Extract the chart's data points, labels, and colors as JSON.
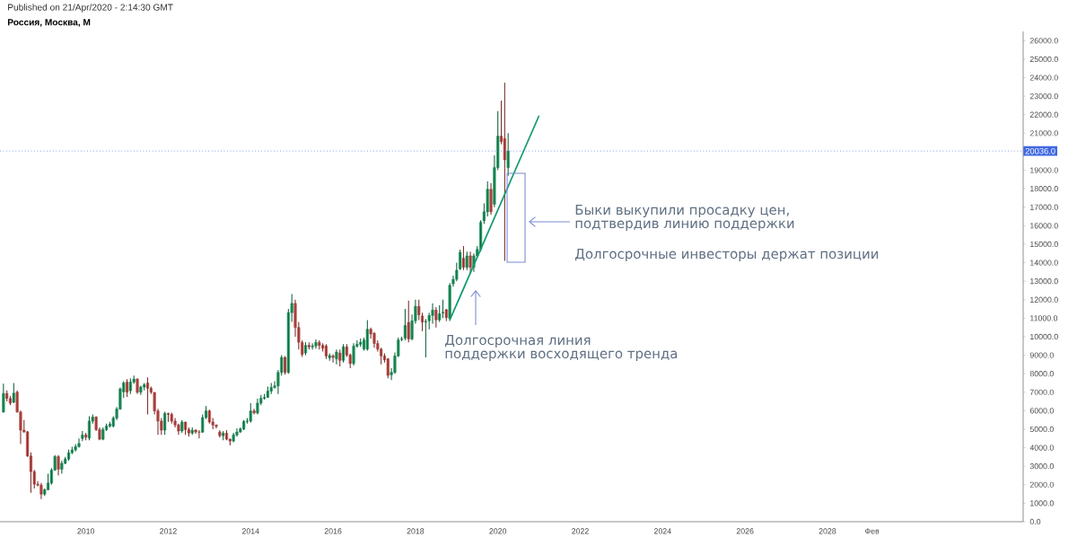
{
  "chart_data": {
    "type": "candlestick",
    "title": "Россия, Москва, M",
    "annotations": [
      "Published on 21/Apr/2020 - 2:14:30 GMT",
      "Быки выкупили просадку цен,",
      "подтвердив линию поддержки",
      "Долгосрочные инвесторы держат позиции",
      "Долгосрочная линия",
      "поддержки восходящего тренда"
    ],
    "x": [
      "2008-01",
      "2008-02",
      "2008-03",
      "2008-04",
      "2008-05",
      "2008-06",
      "2008-07",
      "2008-08",
      "2008-09",
      "2008-10",
      "2008-11",
      "2008-12",
      "2009-01",
      "2009-02",
      "2009-03",
      "2009-04",
      "2009-05",
      "2009-06",
      "2009-07",
      "2009-08",
      "2009-09",
      "2009-10",
      "2009-11",
      "2009-12",
      "2010-01",
      "2010-02",
      "2010-03",
      "2010-04",
      "2010-05",
      "2010-06",
      "2010-07",
      "2010-08",
      "2010-09",
      "2010-10",
      "2010-11",
      "2010-12",
      "2011-01",
      "2011-02",
      "2011-03",
      "2011-04",
      "2011-05",
      "2011-06",
      "2011-07",
      "2011-08",
      "2011-09",
      "2011-10",
      "2011-11",
      "2011-12",
      "2012-01",
      "2012-02",
      "2012-03",
      "2012-04",
      "2012-05",
      "2012-06",
      "2012-07",
      "2012-08",
      "2012-09",
      "2012-10",
      "2012-11",
      "2012-12",
      "2013-01",
      "2013-02",
      "2013-03",
      "2013-04",
      "2013-05",
      "2013-06",
      "2013-07",
      "2013-08",
      "2013-09",
      "2013-10",
      "2013-11",
      "2013-12",
      "2014-01",
      "2014-02",
      "2014-03",
      "2014-04",
      "2014-05",
      "2014-06",
      "2014-07",
      "2014-08",
      "2014-09",
      "2014-10",
      "2014-11",
      "2014-12",
      "2015-01",
      "2015-02",
      "2015-03",
      "2015-04",
      "2015-05",
      "2015-06",
      "2015-07",
      "2015-08",
      "2015-09",
      "2015-10",
      "2015-11",
      "2015-12",
      "2016-01",
      "2016-02",
      "2016-03",
      "2016-04",
      "2016-05",
      "2016-06",
      "2016-07",
      "2016-08",
      "2016-09",
      "2016-10",
      "2016-11",
      "2016-12",
      "2017-01",
      "2017-02",
      "2017-03",
      "2017-04",
      "2017-05",
      "2017-06",
      "2017-07",
      "2017-08",
      "2017-09",
      "2017-10",
      "2017-11",
      "2017-12",
      "2018-01",
      "2018-02",
      "2018-03",
      "2018-04",
      "2018-05",
      "2018-06",
      "2018-07",
      "2018-08",
      "2018-09",
      "2018-10",
      "2018-11",
      "2018-12",
      "2019-01",
      "2019-02",
      "2019-03",
      "2019-04",
      "2019-05",
      "2019-06",
      "2019-07",
      "2019-08",
      "2019-09",
      "2019-10",
      "2019-11",
      "2019-12",
      "2020-01",
      "2020-02",
      "2020-03",
      "2020-04"
    ],
    "ohlc": [
      [
        5930,
        7460,
        5900,
        6930
      ],
      [
        6930,
        7100,
        6500,
        6660
      ],
      [
        6660,
        6800,
        6300,
        6410
      ],
      [
        6460,
        7500,
        6400,
        6950
      ],
      [
        7000,
        7100,
        5900,
        5930
      ],
      [
        5930,
        6000,
        4200,
        4950
      ],
      [
        4950,
        5500,
        4800,
        4860
      ],
      [
        4860,
        4900,
        3500,
        3550
      ],
      [
        3550,
        3750,
        1570,
        2710
      ],
      [
        2710,
        2800,
        1800,
        2030
      ],
      [
        2030,
        2200,
        1900,
        1980
      ],
      [
        1980,
        2100,
        1230,
        1490
      ],
      [
        1490,
        1800,
        1400,
        1730
      ],
      [
        1730,
        2600,
        1700,
        2090
      ],
      [
        2090,
        2900,
        2000,
        2790
      ],
      [
        2790,
        3600,
        2750,
        3520
      ],
      [
        3520,
        3600,
        2500,
        2840
      ],
      [
        2840,
        3300,
        2600,
        3160
      ],
      [
        3160,
        3500,
        3100,
        3390
      ],
      [
        3390,
        3900,
        3300,
        3730
      ],
      [
        3730,
        4050,
        3650,
        3880
      ],
      [
        3880,
        4200,
        3800,
        4060
      ],
      [
        4060,
        4500,
        4000,
        4230
      ],
      [
        4500,
        4900,
        4350,
        4690
      ],
      [
        4690,
        4800,
        4400,
        4570
      ],
      [
        4520,
        5700,
        4400,
        5440
      ],
      [
        5440,
        5800,
        5300,
        5660
      ],
      [
        5660,
        5700,
        4900,
        4980
      ],
      [
        4980,
        5100,
        4400,
        4460
      ],
      [
        4460,
        5100,
        4400,
        4980
      ],
      [
        4980,
        5300,
        4900,
        5170
      ],
      [
        5170,
        5400,
        5100,
        5270
      ],
      [
        5170,
        5700,
        5100,
        5600
      ],
      [
        5600,
        6200,
        5500,
        6090
      ],
      [
        6090,
        7250,
        6050,
        7180
      ],
      [
        7020,
        7600,
        6700,
        7500
      ],
      [
        7550,
        7700,
        6750,
        7000
      ],
      [
        7080,
        7750,
        6900,
        7550
      ],
      [
        7550,
        7900,
        7450,
        7710
      ],
      [
        7710,
        7750,
        6900,
        7000
      ],
      [
        7000,
        7350,
        6850,
        7280
      ],
      [
        7280,
        7500,
        7100,
        7400
      ],
      [
        7500,
        7800,
        5800,
        7210
      ],
      [
        7210,
        7300,
        6900,
        7000
      ],
      [
        6990,
        7000,
        5800,
        5990
      ],
      [
        5990,
        6100,
        4700,
        5440
      ],
      [
        5440,
        5600,
        4700,
        4950
      ],
      [
        4950,
        5950,
        4700,
        5850
      ],
      [
        5850,
        5900,
        5400,
        5800
      ],
      [
        5800,
        5900,
        5300,
        5440
      ],
      [
        5440,
        5600,
        5100,
        5230
      ],
      [
        5230,
        5300,
        4700,
        4900
      ],
      [
        4900,
        5500,
        4800,
        5390
      ],
      [
        5390,
        5400,
        4700,
        4980
      ],
      [
        4980,
        5100,
        4600,
        4790
      ],
      [
        4790,
        5100,
        4700,
        4950
      ],
      [
        4950,
        5000,
        4750,
        4850
      ],
      [
        4850,
        4950,
        4500,
        4840
      ],
      [
        4840,
        5800,
        4800,
        5630
      ],
      [
        5630,
        6250,
        5550,
        5990
      ],
      [
        5990,
        6050,
        5300,
        5390
      ],
      [
        5390,
        5600,
        5000,
        5230
      ],
      [
        5230,
        5250,
        5050,
        5150
      ],
      [
        4850,
        4950,
        4550,
        4650
      ],
      [
        4650,
        4900,
        4400,
        4790
      ],
      [
        4790,
        4950,
        4400,
        4460
      ],
      [
        4460,
        4500,
        4130,
        4360
      ],
      [
        4360,
        4800,
        4300,
        4690
      ],
      [
        4690,
        5050,
        4600,
        4850
      ],
      [
        4850,
        5100,
        4800,
        5010
      ],
      [
        5010,
        5500,
        4950,
        5420
      ],
      [
        5420,
        5600,
        5300,
        5440
      ],
      [
        5440,
        6400,
        5350,
        5990
      ],
      [
        5990,
        6100,
        5800,
        5880
      ],
      [
        5880,
        6650,
        5800,
        6410
      ],
      [
        6410,
        6850,
        6300,
        6670
      ],
      [
        6670,
        6900,
        6600,
        6720
      ],
      [
        6720,
        7300,
        6700,
        7060
      ],
      [
        7060,
        7500,
        6900,
        7260
      ],
      [
        7260,
        7600,
        7200,
        7340
      ],
      [
        7340,
        8200,
        6900,
        8070
      ],
      [
        8070,
        9000,
        7900,
        8880
      ],
      [
        8880,
        8950,
        7950,
        8070
      ],
      [
        8070,
        11500,
        8000,
        11300
      ],
      [
        11300,
        12300,
        10800,
        11800
      ],
      [
        11800,
        12000,
        10000,
        10500
      ],
      [
        10500,
        10800,
        9300,
        9700
      ],
      [
        9690,
        9800,
        8900,
        9040
      ],
      [
        9120,
        9700,
        9000,
        9530
      ],
      [
        9530,
        9700,
        9300,
        9450
      ],
      [
        9450,
        9650,
        9300,
        9500
      ],
      [
        9500,
        9850,
        9350,
        9690
      ],
      [
        9690,
        9800,
        9300,
        9530
      ],
      [
        9530,
        9650,
        9200,
        9370
      ],
      [
        9500,
        9600,
        8800,
        8960
      ],
      [
        8860,
        9100,
        8700,
        8980
      ],
      [
        8960,
        9050,
        8600,
        8880
      ],
      [
        8800,
        9300,
        8500,
        9170
      ],
      [
        9120,
        9300,
        8400,
        8720
      ],
      [
        8720,
        9600,
        8600,
        9450
      ],
      [
        9450,
        9600,
        8900,
        9010
      ],
      [
        9010,
        9100,
        8300,
        8550
      ],
      [
        8550,
        9650,
        8450,
        9490
      ],
      [
        9490,
        9800,
        9400,
        9590
      ],
      [
        9590,
        9900,
        9450,
        9700
      ],
      [
        9330,
        9950,
        9250,
        9820
      ],
      [
        9330,
        10900,
        9250,
        10400
      ],
      [
        10400,
        10500,
        9900,
        10150
      ],
      [
        10180,
        10250,
        9400,
        9630
      ],
      [
        9630,
        9800,
        9200,
        9330
      ],
      [
        9330,
        9400,
        8500,
        8960
      ],
      [
        8960,
        9100,
        8600,
        8750
      ],
      [
        8800,
        8850,
        7750,
        7910
      ],
      [
        7940,
        8300,
        7650,
        8070
      ],
      [
        8070,
        9150,
        8000,
        8960
      ],
      [
        8960,
        9950,
        8900,
        9820
      ],
      [
        9850,
        10000,
        9750,
        9880
      ],
      [
        9930,
        11500,
        9800,
        10610
      ],
      [
        10770,
        11950,
        9700,
        9880
      ],
      [
        9880,
        11200,
        9800,
        10860
      ],
      [
        10860,
        12000,
        10700,
        11640
      ],
      [
        11640,
        12000,
        10900,
        11180
      ],
      [
        11120,
        11300,
        10300,
        10790
      ],
      [
        10800,
        10950,
        8880,
        10830
      ],
      [
        10860,
        11300,
        10400,
        11150
      ],
      [
        11150,
        11800,
        10700,
        11440
      ],
      [
        11440,
        11600,
        10500,
        10910
      ],
      [
        10910,
        11700,
        10800,
        11240
      ],
      [
        11280,
        12000,
        11000,
        11320
      ],
      [
        11460,
        11500,
        10850,
        11030
      ],
      [
        10990,
        12900,
        10850,
        12775
      ],
      [
        12860,
        13300,
        12700,
        13100
      ],
      [
        13100,
        14000,
        13000,
        13590
      ],
      [
        13670,
        14700,
        13600,
        14560
      ],
      [
        14240,
        14900,
        13600,
        13750
      ],
      [
        13750,
        14600,
        13600,
        14370
      ],
      [
        14370,
        14600,
        13400,
        13750
      ],
      [
        13750,
        14500,
        13500,
        14370
      ],
      [
        14370,
        14900,
        14300,
        14720
      ],
      [
        14720,
        16300,
        14600,
        16180
      ],
      [
        16270,
        17200,
        16100,
        16750
      ],
      [
        16750,
        18400,
        16500,
        17970
      ],
      [
        17970,
        18300,
        16600,
        16750
      ],
      [
        17160,
        19800,
        17000,
        19140
      ],
      [
        19140,
        22190,
        19000,
        20840
      ],
      [
        20840,
        22760,
        20400,
        20540
      ],
      [
        20700,
        23730,
        14100,
        19560
      ],
      [
        19140,
        21000,
        18700,
        20036
      ]
    ],
    "colors": [
      "#1fb26e",
      "#e25650",
      "#e25650",
      "#1fb26e",
      "#e25650",
      "#e25650",
      "#e25650",
      "#e25650",
      "#e25650",
      "#e25650",
      "#e25650",
      "#e25650",
      "#1fb26e",
      "#1fb26e",
      "#1fb26e",
      "#1fb26e",
      "#e25650",
      "#1fb26e",
      "#1fb26e",
      "#1fb26e",
      "#1fb26e",
      "#1fb26e",
      "#1fb26e",
      "#1fb26e",
      "#e25650",
      "#1fb26e",
      "#1fb26e",
      "#e25650",
      "#e25650",
      "#1fb26e",
      "#1fb26e",
      "#1fb26e",
      "#1fb26e",
      "#1fb26e",
      "#1fb26e",
      "#1fb26e",
      "#e25650",
      "#1fb26e",
      "#1fb26e",
      "#e25650",
      "#1fb26e",
      "#1fb26e",
      "#e25650",
      "#e25650",
      "#e25650",
      "#e25650",
      "#e25650",
      "#1fb26e",
      "#e25650",
      "#e25650",
      "#e25650",
      "#e25650",
      "#1fb26e",
      "#e25650",
      "#e25650",
      "#1fb26e",
      "#e25650",
      "#e25650",
      "#1fb26e",
      "#1fb26e",
      "#e25650",
      "#e25650",
      "#e25650",
      "#e25650",
      "#1fb26e",
      "#e25650",
      "#e25650",
      "#1fb26e",
      "#1fb26e",
      "#1fb26e",
      "#1fb26e",
      "#1fb26e",
      "#1fb26e",
      "#e25650",
      "#1fb26e",
      "#1fb26e",
      "#1fb26e",
      "#1fb26e",
      "#1fb26e",
      "#1fb26e",
      "#1fb26e",
      "#1fb26e",
      "#e25650",
      "#1fb26e",
      "#1fb26e",
      "#e25650",
      "#e25650",
      "#e25650",
      "#1fb26e",
      "#e25650",
      "#1fb26e",
      "#1fb26e",
      "#e25650",
      "#e25650",
      "#e25650",
      "#1fb26e",
      "#e25650",
      "#1fb26e",
      "#e25650",
      "#1fb26e",
      "#e25650",
      "#e25650",
      "#1fb26e",
      "#1fb26e",
      "#1fb26e",
      "#1fb26e",
      "#1fb26e",
      "#e25650",
      "#e25650",
      "#e25650",
      "#e25650",
      "#e25650",
      "#e25650",
      "#1fb26e",
      "#1fb26e",
      "#1fb26e",
      "#1fb26e",
      "#1fb26e",
      "#e25650",
      "#1fb26e",
      "#1fb26e",
      "#e25650",
      "#e25650",
      "#1fb26e",
      "#1fb26e",
      "#1fb26e",
      "#e25650",
      "#1fb26e",
      "#1fb26e",
      "#e25650",
      "#1fb26e",
      "#1fb26e",
      "#1fb26e",
      "#1fb26e",
      "#e25650",
      "#1fb26e",
      "#e25650",
      "#1fb26e",
      "#1fb26e",
      "#1fb26e",
      "#1fb26e",
      "#1fb26e",
      "#e25650",
      "#1fb26e",
      "#1fb26e",
      "#e25650",
      "#e25650",
      "#1fb26e"
    ],
    "series": [
      {
        "type": "line",
        "color": "#119a6e",
        "x": [
          "2018-11",
          "2021-01"
        ],
        "values": [
          10900,
          21950
        ]
      }
    ],
    "ref_lines": [
      {
        "axis": "y",
        "value": 20036,
        "label": "20036.0",
        "color": "#4169e1",
        "line_style": "dotted"
      }
    ],
    "xlim": [
      "2007-12",
      "2032-10"
    ],
    "xticks": [
      "2010",
      "2012",
      "2014",
      "2016",
      "2018",
      "2020",
      "2022",
      "2024",
      "2026",
      "2028",
      {
        "value": "2029-02",
        "label": "Фев"
      }
    ],
    "ylim": [
      0,
      26500
    ],
    "yticks": [
      {
        "value": 0,
        "label": "0.0"
      },
      {
        "value": 1000,
        "label": "1000.0"
      },
      {
        "value": 2000,
        "label": "2000.0"
      },
      {
        "value": 3000,
        "label": "3000.0"
      },
      {
        "value": 4000,
        "label": "4000.0"
      },
      {
        "value": 5000,
        "label": "5000.0"
      },
      {
        "value": 6000,
        "label": "6000.0"
      },
      {
        "value": 7000,
        "label": "7000.0"
      },
      {
        "value": 8000,
        "label": "8000.0"
      },
      {
        "value": 9000,
        "label": "9000.0"
      },
      {
        "value": 10000,
        "label": "10000.0"
      },
      {
        "value": 11000,
        "label": "11000.0"
      },
      {
        "value": 12000,
        "label": "12000.0"
      },
      {
        "value": 13000,
        "label": "13000.0"
      },
      {
        "value": 14000,
        "label": "14000.0"
      },
      {
        "value": 15000,
        "label": "15000.0"
      },
      {
        "value": 16000,
        "label": "16000.0"
      },
      {
        "value": 17000,
        "label": "17000.0"
      },
      {
        "value": 18000,
        "label": "18000.0"
      },
      {
        "value": 19000,
        "label": "19000.0"
      },
      {
        "value": 20000,
        "label": null
      },
      {
        "value": 21000,
        "label": "21000.0"
      },
      {
        "value": 22000,
        "label": "22000.0"
      },
      {
        "value": 23000,
        "label": "23000.0"
      },
      {
        "value": 24000,
        "label": "24000.0"
      },
      {
        "value": 25000,
        "label": "25000.0"
      },
      {
        "value": 26000,
        "label": "26000.0"
      }
    ]
  }
}
